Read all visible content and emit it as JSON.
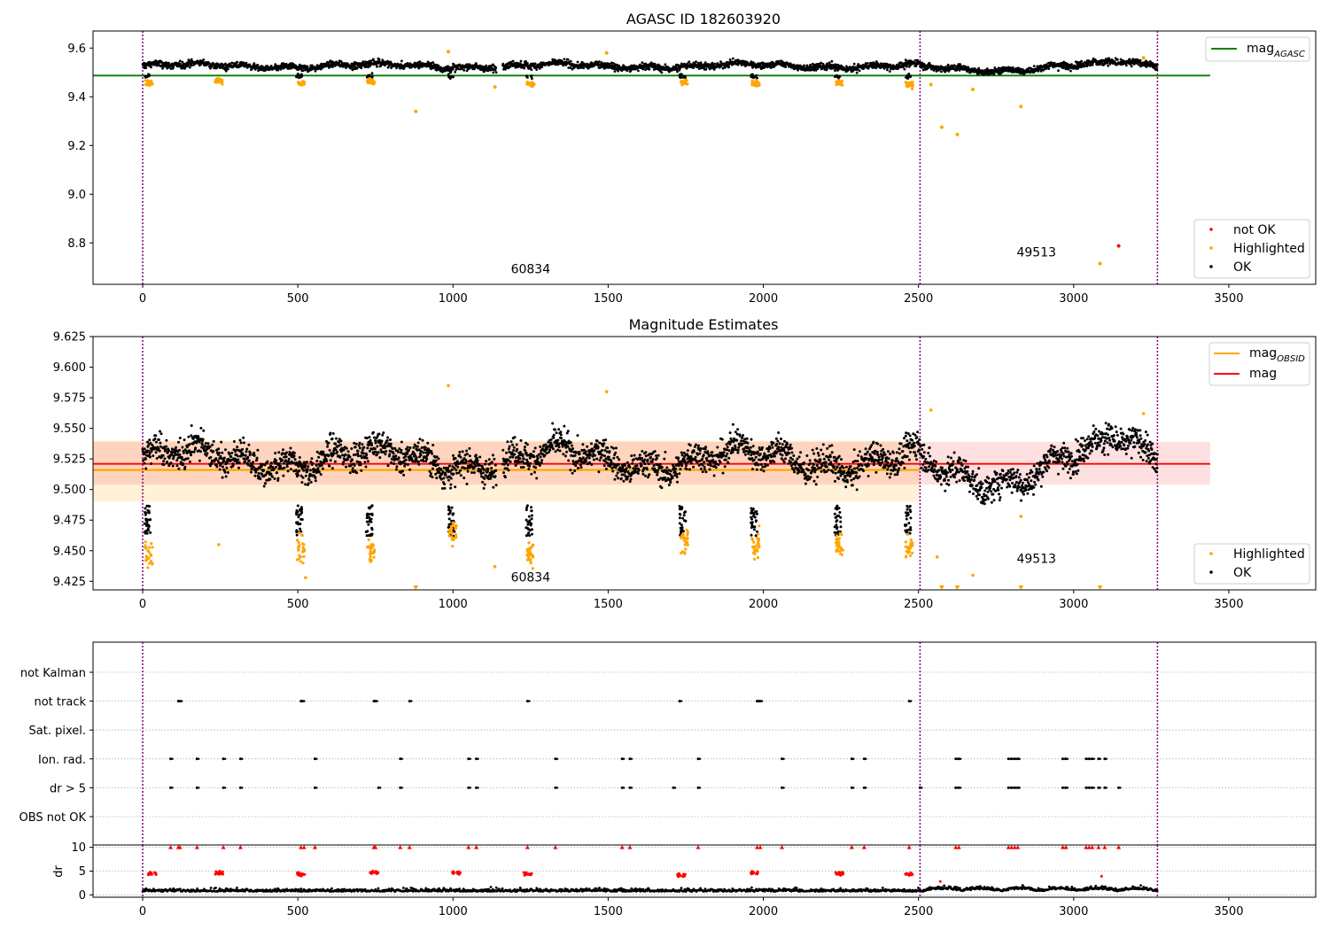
{
  "chart_data": [
    {
      "type": "scatter",
      "title": "AGASC ID 182603920",
      "xlabel": "",
      "ylabel": "",
      "xlim": [
        -160,
        3780
      ],
      "ylim": [
        8.63,
        9.67
      ],
      "x_ticks": [
        0,
        500,
        1000,
        1500,
        2000,
        2500,
        3000,
        3500
      ],
      "y_ticks": [
        8.8,
        9.0,
        9.2,
        9.4,
        9.6
      ],
      "y_tick_labels": [
        "8.8",
        "9.0",
        "9.2",
        "9.4",
        "9.6"
      ],
      "vlines": [
        0,
        2505,
        3270
      ],
      "reference_line": {
        "value": 9.487,
        "from": -160,
        "to": 3440,
        "color": "#008000"
      },
      "annotations": [
        {
          "text": "60834",
          "x": 1250,
          "y": 8.675
        },
        {
          "text": "49513",
          "x": 2880,
          "y": 8.745
        }
      ],
      "legend_top": [
        {
          "label": "mag",
          "sub": "AGASC",
          "color": "#008000"
        }
      ],
      "legend_bottom": [
        {
          "label": "not OK",
          "color": "#ff0000"
        },
        {
          "label": "Highlighted",
          "color": "#ffa500"
        },
        {
          "label": "OK",
          "color": "#000000"
        }
      ],
      "series": [
        {
          "name": "not OK",
          "color": "#ff0000",
          "points": [
            [
              3145,
              8.788
            ]
          ]
        },
        {
          "name": "Highlighted",
          "color": "#ffa500",
          "points": [
            [
              880,
              9.34
            ],
            [
              985,
              9.585
            ],
            [
              1495,
              9.58
            ],
            [
              2575,
              9.275
            ],
            [
              2625,
              9.245
            ],
            [
              2675,
              9.43
            ],
            [
              2830,
              9.36
            ],
            [
              3085,
              8.715
            ],
            [
              3225,
              9.56
            ],
            [
              1135,
              9.44
            ],
            [
              2540,
              9.45
            ]
          ]
        },
        {
          "name": "OK",
          "color": "#000000",
          "points": []
        }
      ],
      "ok_band": {
        "center": 9.525,
        "amplitude": 0.018
      },
      "highlight_clusters": [
        [
          20,
          9.455
        ],
        [
          245,
          9.465
        ],
        [
          510,
          9.455
        ],
        [
          735,
          9.46
        ],
        [
          1250,
          9.45
        ],
        [
          1745,
          9.46
        ],
        [
          1975,
          9.455
        ],
        [
          2245,
          9.455
        ],
        [
          2470,
          9.45
        ]
      ]
    },
    {
      "type": "scatter",
      "title": "Magnitude Estimates",
      "xlabel": "",
      "ylabel": "",
      "xlim": [
        -160,
        3780
      ],
      "ylim": [
        9.418,
        9.625
      ],
      "x_ticks": [
        0,
        500,
        1000,
        1500,
        2000,
        2500,
        3000,
        3500
      ],
      "y_ticks": [
        9.425,
        9.45,
        9.475,
        9.5,
        9.525,
        9.55,
        9.575,
        9.6,
        9.625
      ],
      "y_tick_labels": [
        "9.425",
        "9.450",
        "9.475",
        "9.500",
        "9.525",
        "9.550",
        "9.575",
        "9.600",
        "9.625"
      ],
      "vlines": [
        0,
        2505,
        3270
      ],
      "mag_obsid": {
        "value": 9.516,
        "band": [
          9.49,
          9.54
        ],
        "from": -160,
        "to": 2505,
        "color": "#ffa500"
      },
      "mag": {
        "value": 9.521,
        "band": [
          9.504,
          9.539
        ],
        "from": -160,
        "to": 3440,
        "color": "#ff0000"
      },
      "annotations": [
        {
          "text": "60834",
          "x": 1250,
          "y": 9.425
        },
        {
          "text": "49513",
          "x": 2880,
          "y": 9.44
        }
      ],
      "legend_top": [
        {
          "label": "mag",
          "sub": "OBSID",
          "color": "#ffa500"
        },
        {
          "label": "mag",
          "sub": "",
          "color": "#ff0000"
        }
      ],
      "legend_bottom": [
        {
          "label": "Highlighted",
          "color": "#ffa500"
        },
        {
          "label": "OK",
          "color": "#000000"
        }
      ],
      "series": [
        {
          "name": "Highlighted",
          "color": "#ffa500",
          "points": [
            [
              985,
              9.585
            ],
            [
              1495,
              9.58
            ],
            [
              3225,
              9.562
            ],
            [
              2540,
              9.565
            ],
            [
              2830,
              9.478
            ],
            [
              2675,
              9.43
            ],
            [
              1135,
              9.437
            ],
            [
              2560,
              9.445
            ],
            [
              525,
              9.428
            ],
            [
              245,
              9.455
            ]
          ]
        },
        {
          "name": "OK",
          "color": "#000000",
          "points": []
        }
      ],
      "clipped_markers": [
        880,
        2575,
        2625,
        2830,
        3085
      ],
      "highlight_clusters": [
        [
          20,
          9.448
        ],
        [
          510,
          9.452
        ],
        [
          735,
          9.45
        ],
        [
          1000,
          9.465
        ],
        [
          1250,
          9.448
        ],
        [
          1745,
          9.458
        ],
        [
          1975,
          9.455
        ],
        [
          2245,
          9.455
        ],
        [
          2470,
          9.452
        ]
      ]
    },
    {
      "type": "scatter",
      "title": "",
      "xlim": [
        -160,
        3780
      ],
      "flag_rows": [
        "not Kalman",
        "not track",
        "Sat. pixel.",
        "Ion. rad.",
        "dr > 5",
        "OBS not OK"
      ],
      "flag_points": {
        "not Kalman": [],
        "not track": [
          115,
          120,
          510,
          515,
          745,
          750,
          860,
          1240,
          1730,
          1980,
          1985,
          1990,
          2470
        ],
        "Sat. pixel.": [],
        "Ion. rad.": [
          90,
          175,
          260,
          315,
          555,
          830,
          1050,
          1075,
          1330,
          1545,
          1570,
          1790,
          2060,
          2285,
          2325,
          2620,
          2630,
          2790,
          2800,
          2810,
          2820,
          2965,
          2975,
          3040,
          3050,
          3060,
          3080,
          3100
        ],
        "dr > 5": [
          90,
          175,
          260,
          315,
          555,
          760,
          830,
          1050,
          1075,
          1330,
          1545,
          1570,
          1710,
          1790,
          2060,
          2285,
          2325,
          2505,
          2620,
          2630,
          2790,
          2800,
          2810,
          2820,
          2965,
          2975,
          3040,
          3050,
          3060,
          3080,
          3100,
          3145
        ],
        "OBS not OK": []
      },
      "vlines": [
        0,
        2505,
        3270
      ]
    },
    {
      "type": "scatter",
      "title": "",
      "ylabel": "dr",
      "xlim": [
        -160,
        3780
      ],
      "ylim": [
        -0.5,
        10.5
      ],
      "x_ticks": [
        0,
        500,
        1000,
        1500,
        2000,
        2500,
        3000,
        3500
      ],
      "y_ticks": [
        0,
        5,
        10
      ],
      "y_tick_labels": [
        "0",
        "5",
        "10"
      ],
      "vlines": [
        0,
        2505,
        3270
      ],
      "red_clusters": [
        [
          30,
          4.5
        ],
        [
          245,
          4.6
        ],
        [
          510,
          4.3
        ],
        [
          745,
          4.7
        ],
        [
          1010,
          4.6
        ],
        [
          1240,
          4.4
        ],
        [
          1735,
          4.2
        ],
        [
          1970,
          4.6
        ],
        [
          2245,
          4.5
        ],
        [
          2470,
          4.4
        ]
      ],
      "red_capped": [
        90,
        115,
        120,
        175,
        260,
        315,
        510,
        520,
        555,
        745,
        750,
        830,
        860,
        1050,
        1075,
        1240,
        1330,
        1545,
        1570,
        1790,
        1980,
        1990,
        2060,
        2285,
        2325,
        2470,
        2620,
        2630,
        2790,
        2800,
        2810,
        2820,
        2965,
        2975,
        3040,
        3050,
        3060,
        3080,
        3100,
        3145
      ],
      "red_extra": [
        [
          2570,
          2.8
        ],
        [
          3090,
          3.9
        ]
      ]
    }
  ]
}
